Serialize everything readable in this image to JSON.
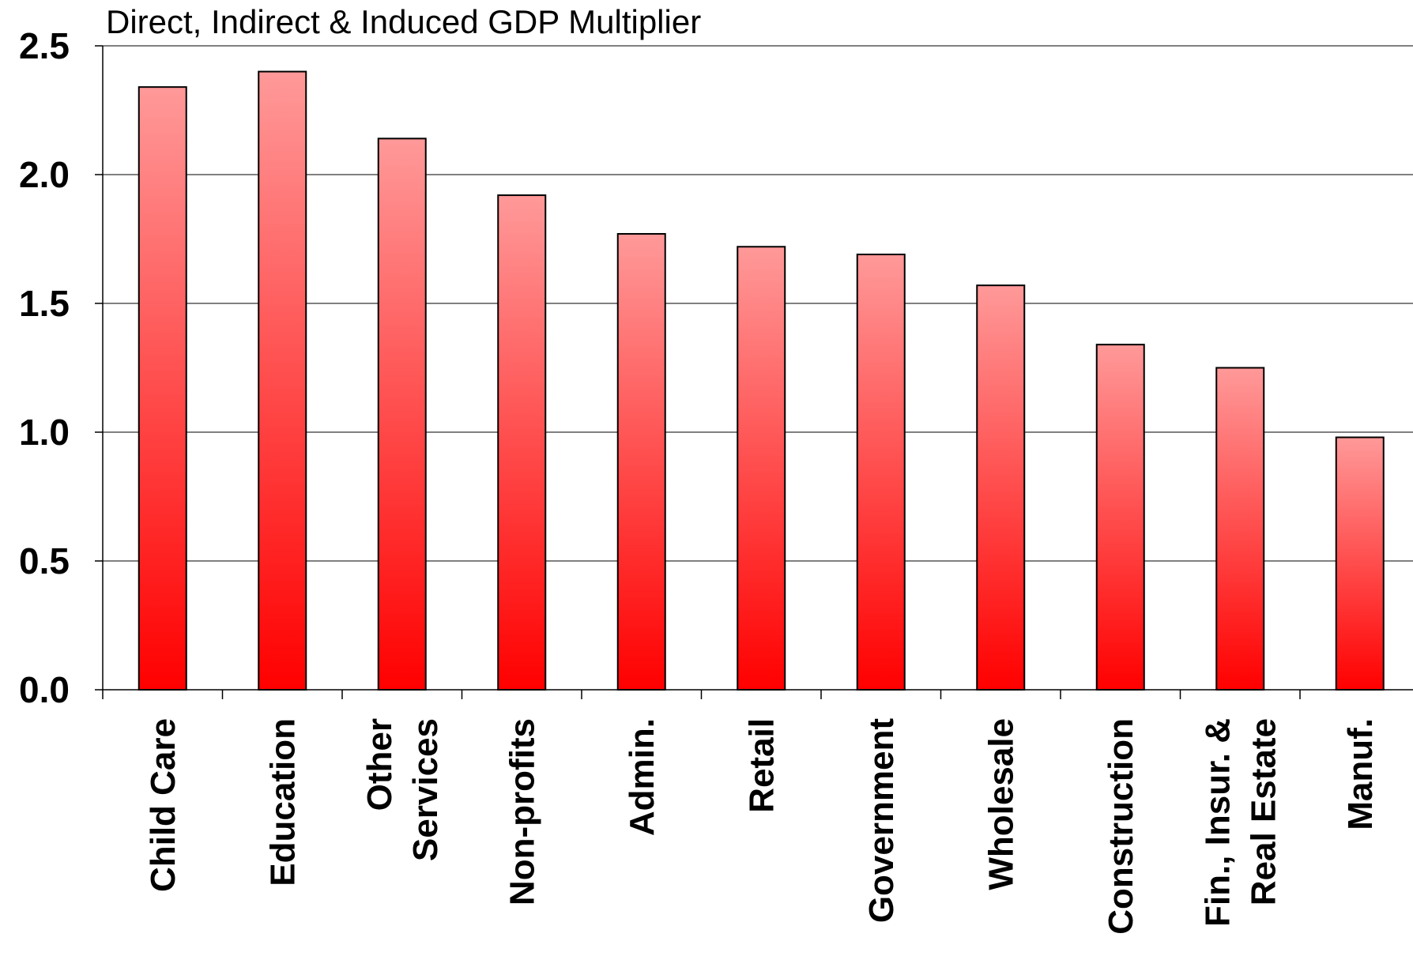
{
  "chart_data": {
    "type": "bar",
    "title": "Direct, Indirect & Induced GDP Multiplier",
    "xlabel": "",
    "ylabel": "",
    "ylim": [
      0,
      2.5
    ],
    "yticks": [
      "0.0",
      "0.5",
      "1.0",
      "1.5",
      "2.0",
      "2.5"
    ],
    "grid": true,
    "categories": [
      "Child Care",
      "Education",
      "Other Services",
      "Non-profits",
      "Admin.",
      "Retail",
      "Government",
      "Wholesale",
      "Construction",
      "Fin., Insur. & Real Estate",
      "Manuf."
    ],
    "category_lines": [
      [
        "Child Care"
      ],
      [
        "Education"
      ],
      [
        "Other",
        "Services"
      ],
      [
        "Non-profits"
      ],
      [
        "Admin."
      ],
      [
        "Retail"
      ],
      [
        "Government"
      ],
      [
        "Wholesale"
      ],
      [
        "Construction"
      ],
      [
        "Fin., Insur. &",
        "Real Estate"
      ],
      [
        "Manuf."
      ]
    ],
    "values": [
      2.34,
      2.4,
      2.14,
      1.92,
      1.77,
      1.72,
      1.69,
      1.57,
      1.34,
      1.25,
      0.98
    ],
    "colors": {
      "bar_top": "#ff9999",
      "bar_bottom": "#ff0000",
      "edge": "#000000"
    }
  }
}
